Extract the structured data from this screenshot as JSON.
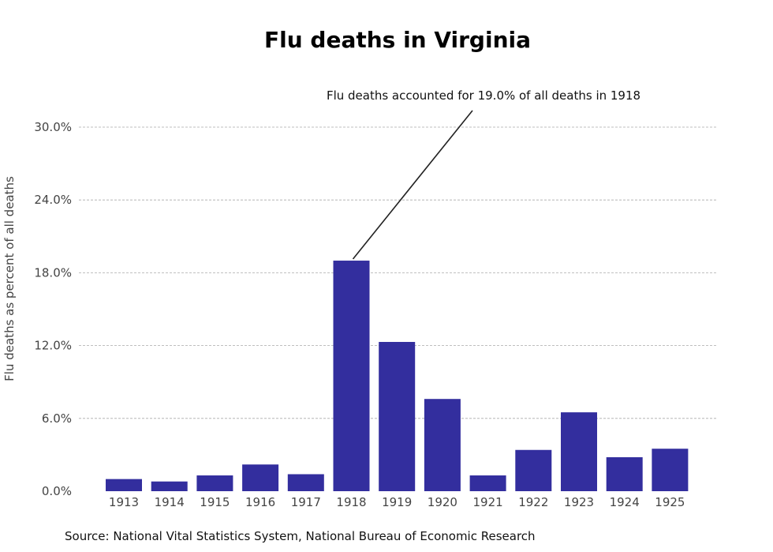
{
  "chart_data": {
    "type": "bar",
    "title": "Flu deaths in Virginia",
    "xlabel": "",
    "ylabel": "Flu deaths as percent of all deaths",
    "categories": [
      "1913",
      "1914",
      "1915",
      "1916",
      "1917",
      "1918",
      "1919",
      "1920",
      "1921",
      "1922",
      "1923",
      "1924",
      "1925"
    ],
    "values": [
      1.0,
      0.8,
      1.3,
      2.2,
      1.4,
      19.0,
      12.3,
      7.6,
      1.3,
      3.4,
      6.5,
      2.8,
      3.5
    ],
    "ylim": [
      0,
      30
    ],
    "yticks": [
      "0.0%",
      "6.0%",
      "12.0%",
      "18.0%",
      "24.0%",
      "30.0%"
    ],
    "ytick_values": [
      0,
      6,
      12,
      18,
      24,
      30
    ],
    "grid": true,
    "bar_color": "#332e9e",
    "annotation": {
      "text": "Flu deaths accounted for 19.0% of all deaths in 1918",
      "target_category": "1918",
      "target_value": 19.0
    },
    "source": "Source: National Vital Statistics System, National Bureau of Economic Research"
  }
}
